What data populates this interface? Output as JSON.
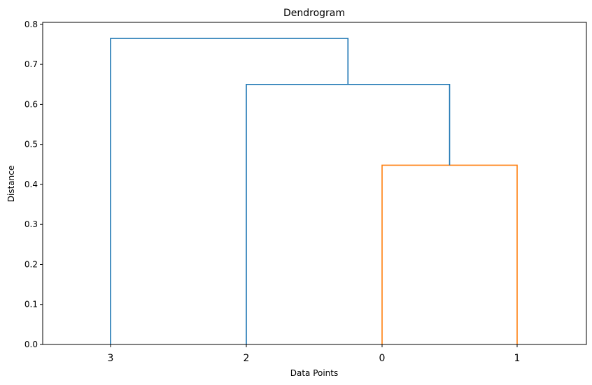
{
  "chart_data": {
    "type": "dendrogram",
    "title": "Dendrogram",
    "xlabel": "Data Points",
    "ylabel": "Distance",
    "ylim": [
      0,
      0.805
    ],
    "yticks": [
      "0.0",
      "0.1",
      "0.2",
      "0.3",
      "0.4",
      "0.5",
      "0.6",
      "0.7",
      "0.8"
    ],
    "leaves": [
      "3",
      "2",
      "0",
      "1"
    ],
    "links": [
      {
        "left": "0",
        "right": "1",
        "distance": 0.448,
        "color": "#ff7f0e"
      },
      {
        "left": "2",
        "right": "(0,1)",
        "distance": 0.65,
        "color": "#1f77b4"
      },
      {
        "left": "3",
        "right": "(2,(0,1))",
        "distance": 0.765,
        "color": "#1f77b4"
      }
    ],
    "grid": false
  }
}
